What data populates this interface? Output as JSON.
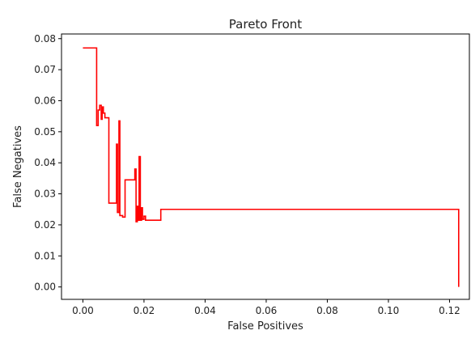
{
  "chart_data": {
    "type": "line",
    "title": "Pareto Front",
    "xlabel": "False Positives",
    "ylabel": "False Negatives",
    "xlim": [
      -0.007,
      0.1265
    ],
    "ylim": [
      -0.004,
      0.0815
    ],
    "x_ticks": [
      0.0,
      0.02,
      0.04,
      0.06,
      0.08,
      0.1,
      0.12
    ],
    "x_tick_labels": [
      "0.00",
      "0.02",
      "0.04",
      "0.06",
      "0.08",
      "0.10",
      "0.12"
    ],
    "y_ticks": [
      0.0,
      0.01,
      0.02,
      0.03,
      0.04,
      0.05,
      0.06,
      0.07,
      0.08
    ],
    "y_tick_labels": [
      "0.00",
      "0.01",
      "0.02",
      "0.03",
      "0.04",
      "0.05",
      "0.06",
      "0.07",
      "0.08"
    ],
    "grid": false,
    "legend": "none",
    "series": [
      {
        "color": "#ff0000",
        "points": [
          [
            0.0,
            0.077
          ],
          [
            0.0045,
            0.077
          ],
          [
            0.0045,
            0.052
          ],
          [
            0.005,
            0.052
          ],
          [
            0.005,
            0.057
          ],
          [
            0.0055,
            0.057
          ],
          [
            0.0055,
            0.0585
          ],
          [
            0.006,
            0.0585
          ],
          [
            0.006,
            0.054
          ],
          [
            0.0063,
            0.054
          ],
          [
            0.0063,
            0.058
          ],
          [
            0.0067,
            0.058
          ],
          [
            0.0067,
            0.056
          ],
          [
            0.0072,
            0.056
          ],
          [
            0.0072,
            0.0545
          ],
          [
            0.0085,
            0.0545
          ],
          [
            0.0085,
            0.027
          ],
          [
            0.011,
            0.027
          ],
          [
            0.011,
            0.046
          ],
          [
            0.0113,
            0.046
          ],
          [
            0.0113,
            0.024
          ],
          [
            0.0118,
            0.024
          ],
          [
            0.0118,
            0.0535
          ],
          [
            0.0121,
            0.0535
          ],
          [
            0.0121,
            0.023
          ],
          [
            0.013,
            0.023
          ],
          [
            0.013,
            0.0225
          ],
          [
            0.0138,
            0.0225
          ],
          [
            0.0138,
            0.0345
          ],
          [
            0.017,
            0.0345
          ],
          [
            0.017,
            0.038
          ],
          [
            0.0174,
            0.038
          ],
          [
            0.0174,
            0.021
          ],
          [
            0.0178,
            0.021
          ],
          [
            0.0178,
            0.026
          ],
          [
            0.0181,
            0.026
          ],
          [
            0.0181,
            0.0215
          ],
          [
            0.0184,
            0.0215
          ],
          [
            0.0184,
            0.042
          ],
          [
            0.0188,
            0.042
          ],
          [
            0.0188,
            0.0215
          ],
          [
            0.0192,
            0.0215
          ],
          [
            0.0192,
            0.0255
          ],
          [
            0.0195,
            0.0255
          ],
          [
            0.0195,
            0.0218
          ],
          [
            0.02,
            0.0218
          ],
          [
            0.02,
            0.0228
          ],
          [
            0.0205,
            0.0228
          ],
          [
            0.0205,
            0.0215
          ],
          [
            0.0255,
            0.0215
          ],
          [
            0.0255,
            0.025
          ],
          [
            0.123,
            0.025
          ],
          [
            0.123,
            0.0
          ]
        ]
      }
    ]
  }
}
